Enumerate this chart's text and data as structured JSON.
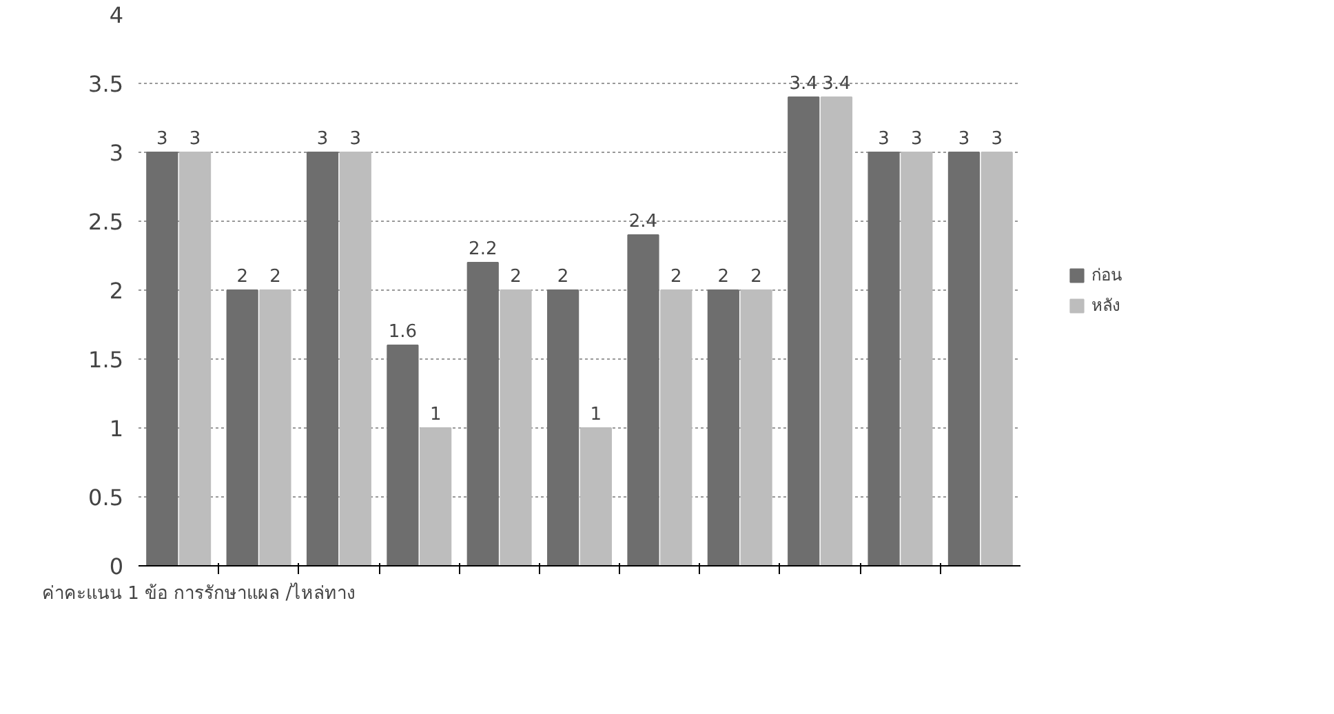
{
  "chart_data": {
    "type": "bar",
    "categories": [
      null,
      null,
      null,
      null,
      null,
      null,
      null,
      null,
      null,
      null,
      null
    ],
    "series": [
      {
        "name": "ก่อน",
        "color": "#6e6e6e",
        "values": [
          3,
          2,
          3,
          1.6,
          2.2,
          2,
          2.4,
          2,
          3.4,
          3,
          3
        ]
      },
      {
        "name": "หลัง",
        "color": "#bdbdbd",
        "values": [
          3,
          2,
          3,
          1,
          2,
          1,
          2,
          2,
          3.4,
          3,
          3
        ]
      }
    ],
    "ylim": [
      0,
      4
    ],
    "yticks": [
      0,
      0.5,
      1,
      1.5,
      2,
      2.5,
      3,
      3.5,
      4
    ],
    "grid": "y",
    "legend": "right",
    "data_labels": true,
    "annotations": [
      "ค่าคะแนน 1 ข้อ การรักษาแผล /ไหล่ทาง"
    ]
  }
}
